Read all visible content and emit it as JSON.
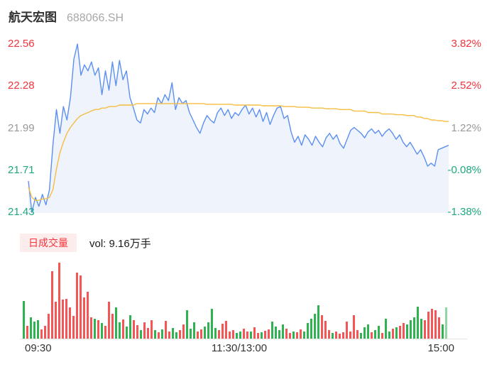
{
  "header": {
    "stock_name": "航天宏图",
    "stock_code": "688066.SH"
  },
  "colors": {
    "up": "#f4333c",
    "down": "#1fa87f",
    "flat": "#999999",
    "price-line": "#5b8ff2",
    "avg-line": "#f6bd42",
    "area": "#eef3fc",
    "vol-up": "#f65556",
    "vol-down": "#2fb350",
    "vol-last": "#8fd9a0",
    "badge-bg": "#fdecec",
    "text": "#333333",
    "code": "#a8a8a8",
    "axis-line": "#e3e3e3"
  },
  "chart_data": {
    "type": "line",
    "title": "航天宏图 688066.SH 分时走势",
    "legend_position": "none",
    "grid": false,
    "x_axis": {
      "ticks": [
        "09:30",
        "11:30/13:00",
        "15:00"
      ],
      "minutes": 240
    },
    "price_axis": {
      "ylim": [
        21.43,
        22.56
      ],
      "labels": [
        {
          "text": "22.56",
          "tone": "up"
        },
        {
          "text": "22.28",
          "tone": "up"
        },
        {
          "text": "21.99",
          "tone": "flat"
        },
        {
          "text": "21.71",
          "tone": "down"
        },
        {
          "text": "21.43",
          "tone": "down"
        }
      ]
    },
    "pct_axis": {
      "ylim": [
        -1.38,
        3.82
      ],
      "labels": [
        {
          "text": "3.82%",
          "tone": "up"
        },
        {
          "text": "2.52%",
          "tone": "up"
        },
        {
          "text": "1.22%",
          "tone": "flat"
        },
        {
          "text": "-0.08%",
          "tone": "down"
        },
        {
          "text": "-1.38%",
          "tone": "down"
        }
      ]
    },
    "prev_close": 21.73,
    "series": [
      {
        "name": "price",
        "values": [
          21.64,
          21.43,
          21.53,
          21.47,
          21.55,
          21.48,
          21.58,
          21.88,
          22.12,
          21.96,
          22.14,
          22.05,
          22.2,
          22.46,
          22.56,
          22.35,
          22.42,
          22.38,
          22.44,
          22.35,
          22.4,
          22.22,
          22.38,
          22.25,
          22.44,
          22.28,
          22.45,
          22.32,
          22.38,
          22.2,
          22.13,
          22.05,
          22.03,
          22.12,
          22.09,
          22.13,
          22.1,
          22.2,
          22.16,
          22.22,
          22.18,
          22.3,
          22.12,
          22.2,
          22.16,
          22.18,
          22.1,
          22.05,
          22.0,
          21.96,
          22.03,
          22.08,
          22.05,
          22.03,
          22.1,
          22.13,
          22.08,
          22.12,
          22.06,
          22.1,
          22.08,
          22.12,
          22.15,
          22.09,
          22.13,
          22.07,
          22.12,
          22.04,
          22.1,
          22.02,
          22.08,
          22.13,
          22.14,
          22.06,
          22.08,
          21.97,
          21.9,
          21.94,
          21.88,
          21.95,
          21.92,
          21.88,
          21.94,
          21.9,
          21.87,
          21.93,
          21.96,
          21.92,
          21.95,
          21.89,
          21.86,
          21.92,
          21.98,
          22.0,
          21.98,
          21.96,
          21.93,
          21.97,
          21.99,
          21.96,
          21.98,
          21.94,
          21.97,
          21.99,
          21.96,
          21.92,
          21.95,
          21.9,
          21.87,
          21.9,
          21.86,
          21.82,
          21.85,
          21.8,
          21.74,
          21.76,
          21.74,
          21.85,
          21.86,
          21.87,
          21.88
        ]
      },
      {
        "name": "avg_price",
        "values": [
          21.6,
          21.53,
          21.51,
          21.51,
          21.52,
          21.52,
          21.53,
          21.58,
          21.72,
          21.83,
          21.9,
          21.96,
          22.0,
          22.03,
          22.06,
          22.08,
          22.09,
          22.1,
          22.11,
          22.12,
          22.12,
          22.13,
          22.13,
          22.14,
          22.14,
          22.14,
          22.15,
          22.15,
          22.15,
          22.15,
          22.15,
          22.16,
          22.16,
          22.16,
          22.16,
          22.16,
          22.16,
          22.16,
          22.16,
          22.16,
          22.16,
          22.16,
          22.16,
          22.16,
          22.16,
          22.16,
          22.16,
          22.16,
          22.16,
          22.16,
          22.16,
          22.155,
          22.155,
          22.155,
          22.155,
          22.155,
          22.155,
          22.155,
          22.155,
          22.15,
          22.15,
          22.15,
          22.15,
          22.15,
          22.15,
          22.15,
          22.15,
          22.145,
          22.145,
          22.145,
          22.145,
          22.145,
          22.145,
          22.14,
          22.14,
          22.14,
          22.14,
          22.135,
          22.135,
          22.135,
          22.135,
          22.13,
          22.13,
          22.13,
          22.13,
          22.125,
          22.125,
          22.125,
          22.125,
          22.12,
          22.12,
          22.12,
          22.12,
          22.11,
          22.11,
          22.11,
          22.11,
          22.1,
          22.1,
          22.1,
          22.1,
          22.09,
          22.09,
          22.09,
          22.09,
          22.085,
          22.085,
          22.085,
          22.08,
          22.08,
          22.08,
          22.07,
          22.07,
          22.06,
          22.06,
          22.05,
          22.05,
          22.045,
          22.045,
          22.04,
          22.04
        ]
      }
    ],
    "volume": {
      "legend_label": "日成交量",
      "total_label": "vol: 9.16万手",
      "bar_color_key": {
        "r": "up-red",
        "g": "down-green",
        "G": "last-light-green"
      },
      "bars": [
        [
          53,
          "g"
        ],
        [
          18,
          "r"
        ],
        [
          30,
          "g"
        ],
        [
          24,
          "g"
        ],
        [
          26,
          "g"
        ],
        [
          13,
          "r"
        ],
        [
          18,
          "r"
        ],
        [
          35,
          "r"
        ],
        [
          95,
          "r"
        ],
        [
          52,
          "r"
        ],
        [
          107,
          "r"
        ],
        [
          55,
          "r"
        ],
        [
          56,
          "r"
        ],
        [
          44,
          "r"
        ],
        [
          32,
          "r"
        ],
        [
          93,
          "r"
        ],
        [
          89,
          "r"
        ],
        [
          58,
          "r"
        ],
        [
          66,
          "r"
        ],
        [
          30,
          "r"
        ],
        [
          28,
          "g"
        ],
        [
          26,
          "r"
        ],
        [
          22,
          "g"
        ],
        [
          18,
          "r"
        ],
        [
          52,
          "r"
        ],
        [
          35,
          "r"
        ],
        [
          44,
          "g"
        ],
        [
          23,
          "g"
        ],
        [
          27,
          "r"
        ],
        [
          17,
          "g"
        ],
        [
          33,
          "g"
        ],
        [
          26,
          "r"
        ],
        [
          19,
          "r"
        ],
        [
          12,
          "g"
        ],
        [
          23,
          "r"
        ],
        [
          15,
          "r"
        ],
        [
          26,
          "r"
        ],
        [
          12,
          "g"
        ],
        [
          9,
          "r"
        ],
        [
          13,
          "g"
        ],
        [
          25,
          "r"
        ],
        [
          10,
          "r"
        ],
        [
          15,
          "g"
        ],
        [
          9,
          "g"
        ],
        [
          12,
          "r"
        ],
        [
          20,
          "r"
        ],
        [
          40,
          "g"
        ],
        [
          14,
          "g"
        ],
        [
          23,
          "g"
        ],
        [
          10,
          "r"
        ],
        [
          13,
          "r"
        ],
        [
          17,
          "g"
        ],
        [
          23,
          "g"
        ],
        [
          42,
          "g"
        ],
        [
          15,
          "g"
        ],
        [
          12,
          "r"
        ],
        [
          21,
          "r"
        ],
        [
          25,
          "r"
        ],
        [
          10,
          "r"
        ],
        [
          12,
          "r"
        ],
        [
          8,
          "g"
        ],
        [
          10,
          "g"
        ],
        [
          14,
          "r"
        ],
        [
          10,
          "r"
        ],
        [
          10,
          "g"
        ],
        [
          16,
          "r"
        ],
        [
          8,
          "r"
        ],
        [
          9,
          "g"
        ],
        [
          11,
          "r"
        ],
        [
          13,
          "r"
        ],
        [
          24,
          "g"
        ],
        [
          17,
          "g"
        ],
        [
          12,
          "g"
        ],
        [
          20,
          "g"
        ],
        [
          14,
          "r"
        ],
        [
          8,
          "r"
        ],
        [
          10,
          "g"
        ],
        [
          9,
          "r"
        ],
        [
          13,
          "r"
        ],
        [
          10,
          "g"
        ],
        [
          22,
          "g"
        ],
        [
          28,
          "g"
        ],
        [
          35,
          "g"
        ],
        [
          47,
          "g"
        ],
        [
          33,
          "r"
        ],
        [
          25,
          "r"
        ],
        [
          12,
          "r"
        ],
        [
          8,
          "g"
        ],
        [
          10,
          "r"
        ],
        [
          7,
          "r"
        ],
        [
          9,
          "r"
        ],
        [
          24,
          "r"
        ],
        [
          10,
          "r"
        ],
        [
          33,
          "r"
        ],
        [
          12,
          "r"
        ],
        [
          8,
          "g"
        ],
        [
          16,
          "g"
        ],
        [
          20,
          "g"
        ],
        [
          9,
          "r"
        ],
        [
          12,
          "g"
        ],
        [
          18,
          "g"
        ],
        [
          8,
          "r"
        ],
        [
          28,
          "g"
        ],
        [
          10,
          "g"
        ],
        [
          14,
          "r"
        ],
        [
          16,
          "g"
        ],
        [
          18,
          "r"
        ],
        [
          22,
          "r"
        ],
        [
          20,
          "g"
        ],
        [
          26,
          "g"
        ],
        [
          30,
          "g"
        ],
        [
          45,
          "g"
        ],
        [
          28,
          "g"
        ],
        [
          26,
          "r"
        ],
        [
          38,
          "r"
        ],
        [
          42,
          "r"
        ],
        [
          40,
          "r"
        ],
        [
          30,
          "r"
        ],
        [
          20,
          "g"
        ],
        [
          44,
          "G"
        ]
      ]
    }
  }
}
